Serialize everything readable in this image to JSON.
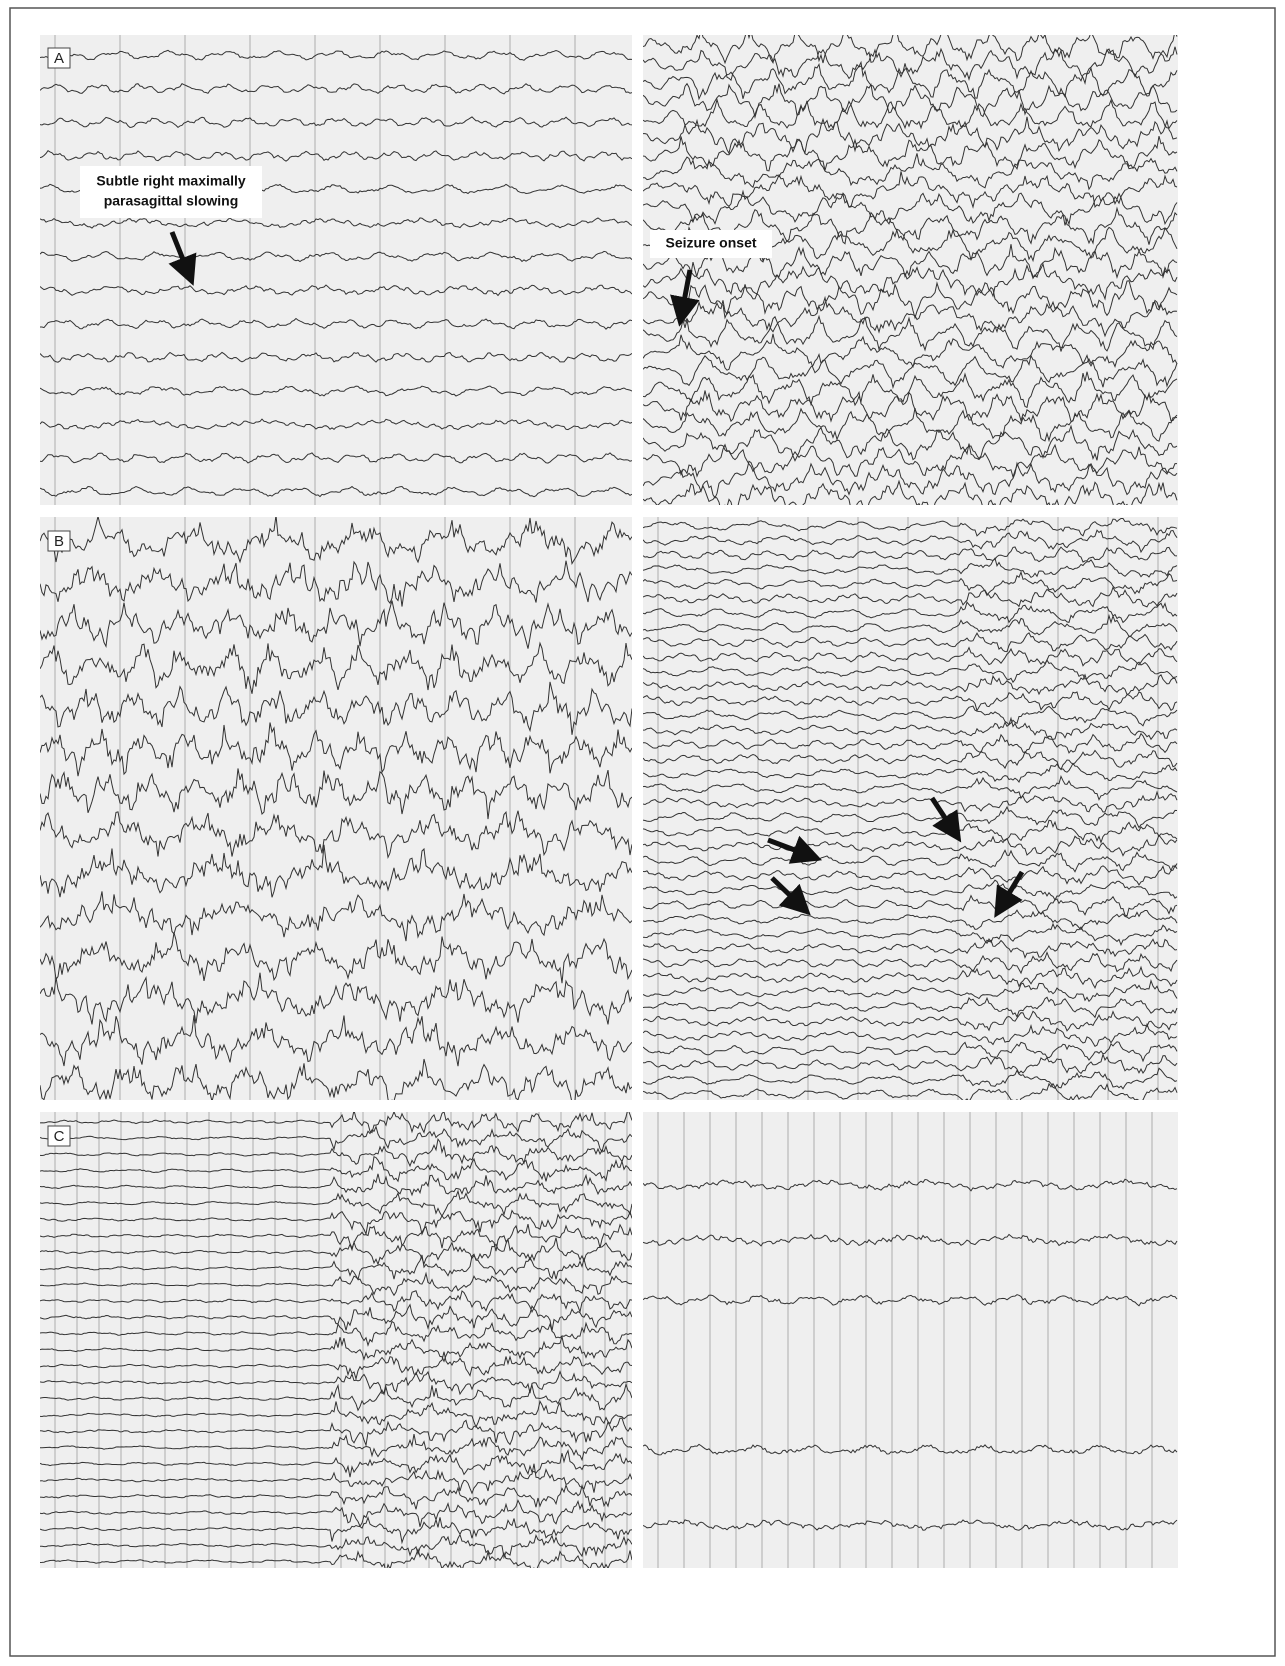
{
  "figure": {
    "panels": [
      {
        "label": "A",
        "annotations": [
          {
            "lines": [
              "Subtle right maximally",
              "parasagittal slowing"
            ]
          },
          {
            "lines": [
              "Seizure onset"
            ]
          }
        ]
      },
      {
        "label": "B"
      },
      {
        "label": "C"
      }
    ]
  }
}
